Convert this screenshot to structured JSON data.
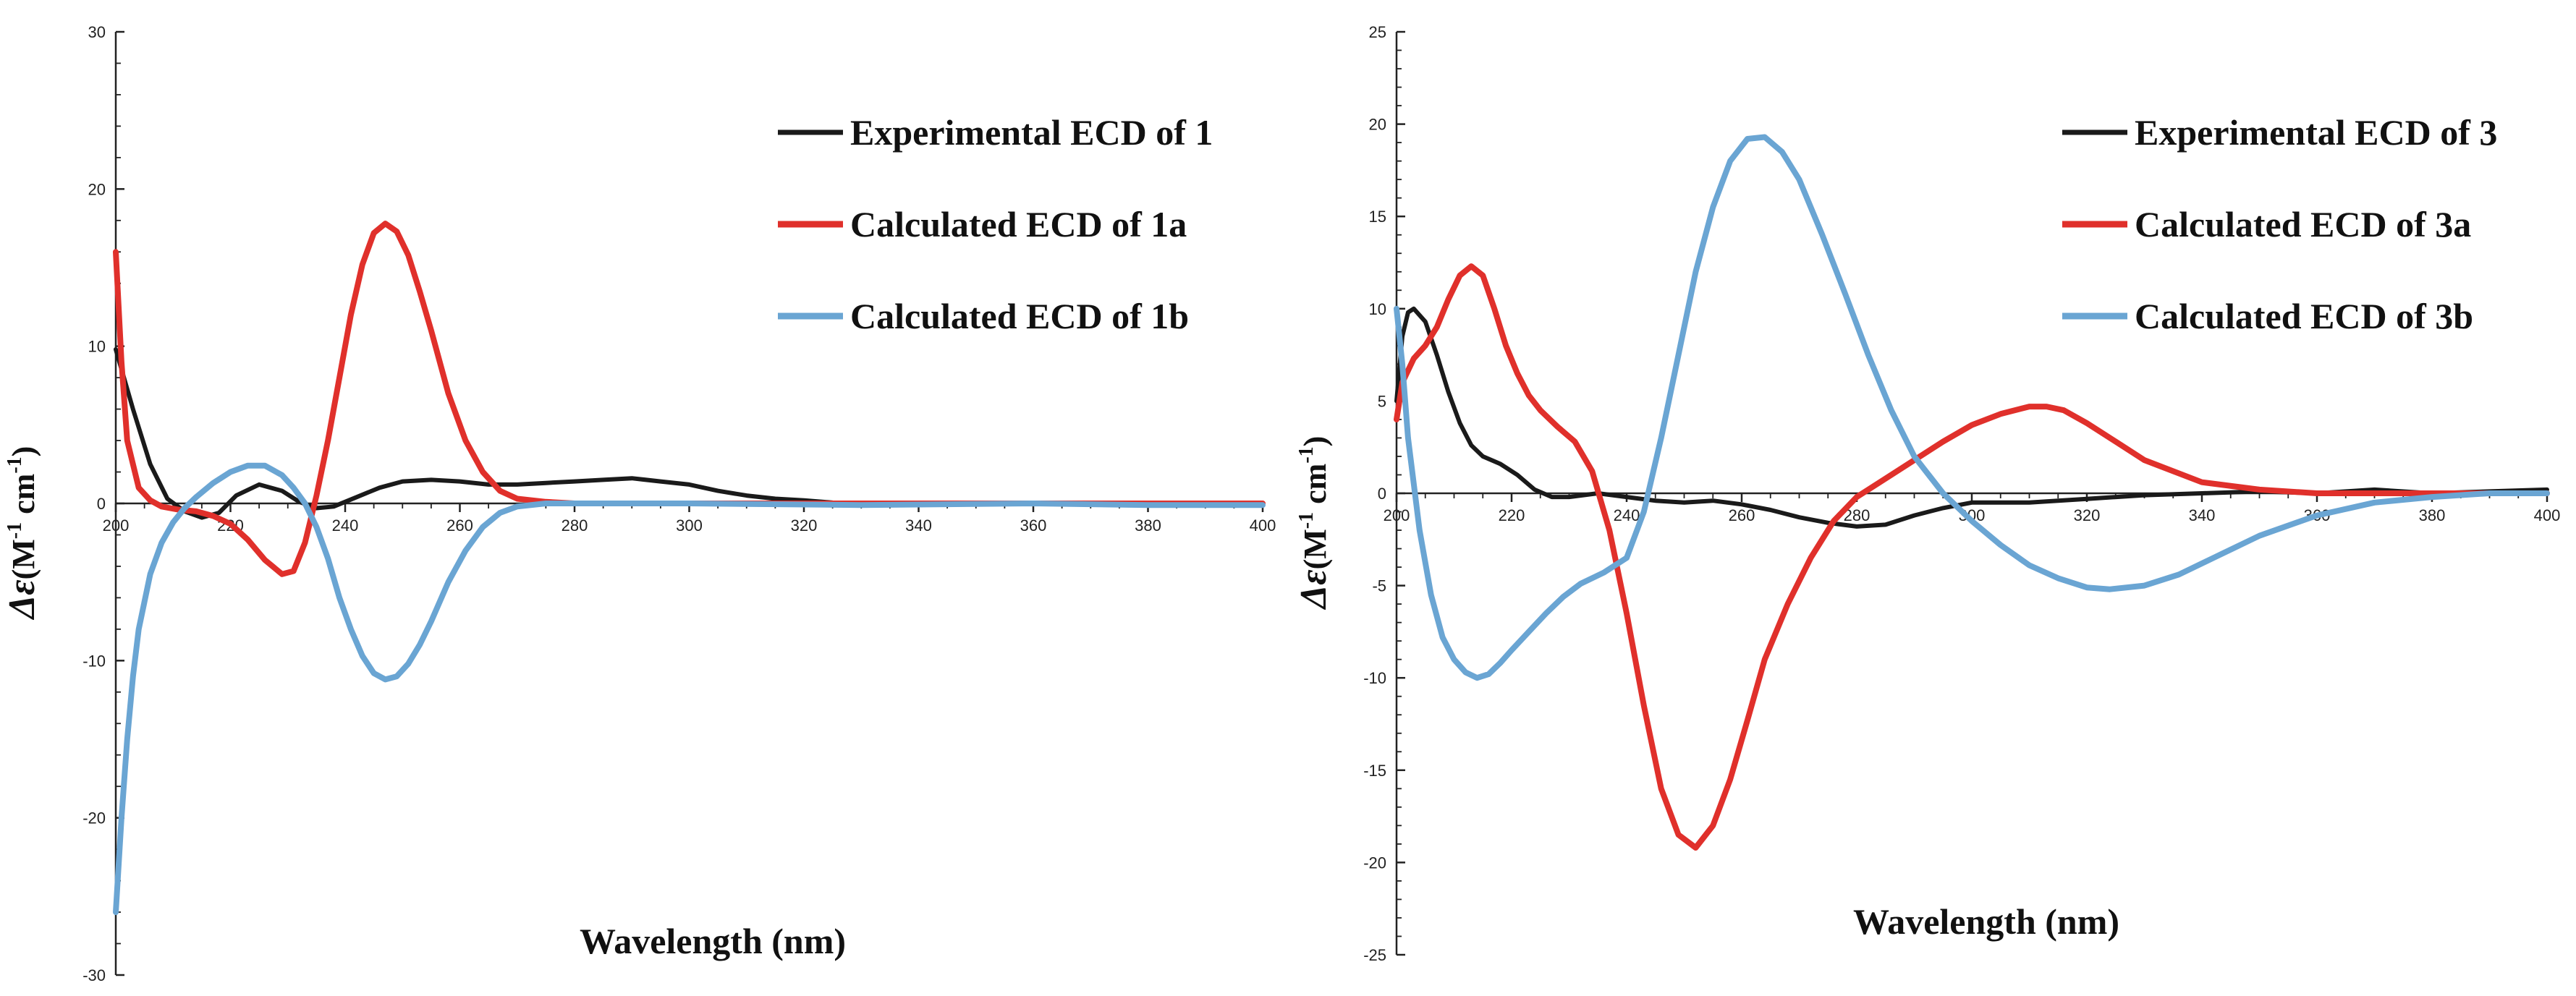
{
  "chart_data": [
    {
      "type": "line",
      "title": "",
      "xlabel": "Wavelength (nm)",
      "ylabel_parts": {
        "symbol": "Δε",
        "unit_a": "(M",
        "sup_a": "-1",
        "unit_b": " cm",
        "sup_b": "-1",
        "unit_c": ")"
      },
      "xlim": [
        200,
        400
      ],
      "ylim": [
        -30,
        30
      ],
      "xticks": [
        "200",
        "220",
        "240",
        "260",
        "280",
        "300",
        "320",
        "340",
        "360",
        "380",
        "400"
      ],
      "yticks": [
        "-30",
        "-20",
        "-10",
        "0",
        "10",
        "20",
        "30"
      ],
      "legend_position": "top-right",
      "series": [
        {
          "name": "Experimental ECD of 1",
          "color": "#1a1a1a",
          "x": [
            200,
            203,
            206,
            209,
            212,
            215,
            218,
            221,
            225,
            229,
            232,
            235,
            238,
            242,
            246,
            250,
            255,
            260,
            265,
            270,
            275,
            280,
            285,
            290,
            295,
            300,
            305,
            310,
            315,
            320,
            325,
            330,
            340,
            350,
            360,
            370,
            380,
            390,
            400
          ],
          "values": [
            9.8,
            6,
            2.5,
            0.3,
            -0.5,
            -0.9,
            -0.6,
            0.5,
            1.2,
            0.8,
            0.1,
            -0.3,
            -0.2,
            0.4,
            1.0,
            1.4,
            1.5,
            1.4,
            1.2,
            1.2,
            1.3,
            1.4,
            1.5,
            1.6,
            1.4,
            1.2,
            0.8,
            0.5,
            0.3,
            0.2,
            0.05,
            0,
            -0.05,
            0,
            0,
            -0.05,
            0,
            -0.1,
            -0.1
          ]
        },
        {
          "name": "Calculated ECD of 1a",
          "color": "#e0302b",
          "x": [
            200,
            201,
            202,
            204,
            206,
            208,
            211,
            214,
            217,
            220,
            223,
            226,
            229,
            231,
            233,
            235,
            237,
            239,
            241,
            243,
            245,
            247,
            249,
            251,
            253,
            255,
            258,
            261,
            264,
            267,
            270,
            275,
            280,
            290,
            300,
            320,
            340,
            360,
            380,
            400
          ],
          "values": [
            16,
            9,
            4,
            1,
            0.2,
            -0.2,
            -0.4,
            -0.5,
            -0.8,
            -1.3,
            -2.3,
            -3.6,
            -4.5,
            -4.3,
            -2.5,
            0.5,
            4,
            8,
            12,
            15.2,
            17.2,
            17.8,
            17.3,
            15.8,
            13.5,
            11,
            7,
            4,
            2,
            0.8,
            0.3,
            0.1,
            0,
            0,
            0,
            0,
            0,
            0,
            0,
            0
          ]
        },
        {
          "name": "Calculated ECD of 1b",
          "color": "#6aa5d3",
          "x": [
            200,
            201,
            202,
            203,
            204,
            206,
            208,
            210,
            212,
            214,
            217,
            220,
            223,
            226,
            229,
            231,
            233,
            235,
            237,
            239,
            241,
            243,
            245,
            247,
            249,
            251,
            253,
            255,
            258,
            261,
            264,
            267,
            270,
            275,
            280,
            300,
            330,
            360,
            380,
            400
          ],
          "values": [
            -26,
            -20,
            -15,
            -11,
            -8,
            -4.5,
            -2.5,
            -1.2,
            -0.3,
            0.4,
            1.3,
            2,
            2.4,
            2.4,
            1.8,
            1,
            0,
            -1.5,
            -3.5,
            -6,
            -8,
            -9.7,
            -10.8,
            -11.2,
            -11,
            -10.2,
            -9,
            -7.5,
            -5,
            -3,
            -1.5,
            -0.6,
            -0.2,
            0,
            0,
            0,
            -0.1,
            0,
            -0.1,
            -0.1
          ]
        }
      ]
    },
    {
      "type": "line",
      "title": "",
      "xlabel": "Wavelength (nm)",
      "ylabel_parts": {
        "symbol": "Δε",
        "unit_a": "(M",
        "sup_a": "-1",
        "unit_b": " cm",
        "sup_b": "-1",
        "unit_c": ")"
      },
      "xlim": [
        200,
        400
      ],
      "ylim": [
        -25,
        25
      ],
      "xticks": [
        "200",
        "220",
        "240",
        "260",
        "280",
        "300",
        "320",
        "340",
        "360",
        "380",
        "400"
      ],
      "yticks": [
        "-25",
        "-20",
        "-15",
        "-10",
        "-5",
        "0",
        "5",
        "10",
        "15",
        "20",
        "25"
      ],
      "legend_position": "top-right",
      "series": [
        {
          "name": "Experimental ECD of 3",
          "color": "#1a1a1a",
          "x": [
            200,
            201,
            202,
            203,
            205,
            207,
            209,
            211,
            213,
            215,
            218,
            221,
            224,
            227,
            230,
            235,
            240,
            245,
            250,
            255,
            260,
            265,
            270,
            275,
            280,
            285,
            290,
            295,
            300,
            310,
            320,
            330,
            340,
            350,
            360,
            370,
            380,
            390,
            400
          ],
          "values": [
            5,
            8.5,
            9.8,
            10,
            9.3,
            7.5,
            5.5,
            3.8,
            2.6,
            2,
            1.6,
            1.0,
            0.2,
            -0.2,
            -0.2,
            0,
            -0.2,
            -0.4,
            -0.5,
            -0.4,
            -0.6,
            -0.9,
            -1.3,
            -1.6,
            -1.8,
            -1.7,
            -1.2,
            -0.8,
            -0.5,
            -0.5,
            -0.3,
            -0.1,
            0,
            0.1,
            0,
            0.2,
            0,
            0.1,
            0.2
          ]
        },
        {
          "name": "Calculated ECD of 3a",
          "color": "#e0302b",
          "x": [
            200,
            201,
            203,
            205,
            207,
            209,
            211,
            213,
            215,
            217,
            219,
            221,
            223,
            225,
            228,
            231,
            234,
            237,
            240,
            243,
            246,
            249,
            252,
            255,
            258,
            261,
            264,
            268,
            272,
            276,
            280,
            285,
            290,
            295,
            300,
            305,
            310,
            313,
            316,
            320,
            325,
            330,
            340,
            350,
            360,
            370,
            380,
            390,
            400
          ],
          "values": [
            4,
            6,
            7.3,
            8,
            9,
            10.5,
            11.8,
            12.3,
            11.8,
            10,
            8,
            6.5,
            5.3,
            4.5,
            3.6,
            2.8,
            1.2,
            -2,
            -6.5,
            -11.5,
            -16,
            -18.5,
            -19.2,
            -18,
            -15.5,
            -12.3,
            -9,
            -6,
            -3.5,
            -1.5,
            -0.2,
            0.8,
            1.8,
            2.8,
            3.7,
            4.3,
            4.7,
            4.7,
            4.5,
            3.8,
            2.8,
            1.8,
            0.6,
            0.2,
            0,
            0,
            0,
            0,
            0
          ]
        },
        {
          "name": "Calculated ECD of 3b",
          "color": "#6aa5d3",
          "x": [
            200,
            201,
            202,
            204,
            206,
            208,
            210,
            212,
            214,
            216,
            218,
            220,
            223,
            226,
            229,
            232,
            236,
            240,
            243,
            246,
            249,
            252,
            255,
            258,
            261,
            264,
            267,
            270,
            274,
            278,
            282,
            286,
            290,
            295,
            300,
            305,
            310,
            315,
            320,
            324,
            330,
            336,
            342,
            350,
            360,
            370,
            380,
            390,
            400
          ],
          "values": [
            10,
            7,
            3,
            -2,
            -5.5,
            -7.8,
            -9,
            -9.7,
            -10,
            -9.8,
            -9.2,
            -8.5,
            -7.5,
            -6.5,
            -5.6,
            -4.9,
            -4.3,
            -3.5,
            -1,
            3,
            7.5,
            12,
            15.5,
            18,
            19.2,
            19.3,
            18.5,
            17,
            14,
            10.8,
            7.5,
            4.5,
            2,
            0,
            -1.5,
            -2.8,
            -3.9,
            -4.6,
            -5.1,
            -5.2,
            -5,
            -4.4,
            -3.5,
            -2.3,
            -1.2,
            -0.5,
            -0.2,
            0,
            0
          ]
        }
      ]
    }
  ]
}
